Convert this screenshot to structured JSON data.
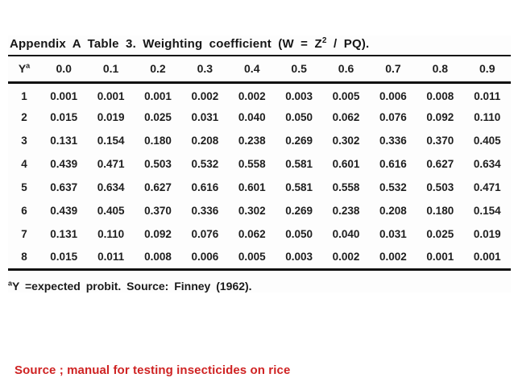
{
  "table": {
    "title": {
      "prefix": "Appendix A Table 3. Weighting coefficient (W = Z",
      "superscript": "2",
      "suffix": " / PQ)."
    },
    "header": {
      "row_label": "Y",
      "row_label_sup": "a",
      "columns": [
        "0.0",
        "0.1",
        "0.2",
        "0.3",
        "0.4",
        "0.5",
        "0.6",
        "0.7",
        "0.8",
        "0.9"
      ]
    },
    "rows": [
      {
        "y": "1",
        "values": [
          "0.001",
          "0.001",
          "0.001",
          "0.002",
          "0.002",
          "0.003",
          "0.005",
          "0.006",
          "0.008",
          "0.011"
        ]
      },
      {
        "y": "2",
        "values": [
          "0.015",
          "0.019",
          "0.025",
          "0.031",
          "0.040",
          "0.050",
          "0.062",
          "0.076",
          "0.092",
          "0.110"
        ]
      },
      {
        "y": "3",
        "values": [
          "0.131",
          "0.154",
          "0.180",
          "0.208",
          "0.238",
          "0.269",
          "0.302",
          "0.336",
          "0.370",
          "0.405"
        ]
      },
      {
        "y": "4",
        "values": [
          "0.439",
          "0.471",
          "0.503",
          "0.532",
          "0.558",
          "0.581",
          "0.601",
          "0.616",
          "0.627",
          "0.634"
        ]
      },
      {
        "y": "5",
        "values": [
          "0.637",
          "0.634",
          "0.627",
          "0.616",
          "0.601",
          "0.581",
          "0.558",
          "0.532",
          "0.503",
          "0.471"
        ]
      },
      {
        "y": "6",
        "values": [
          "0.439",
          "0.405",
          "0.370",
          "0.336",
          "0.302",
          "0.269",
          "0.238",
          "0.208",
          "0.180",
          "0.154"
        ]
      },
      {
        "y": "7",
        "values": [
          "0.131",
          "0.110",
          "0.092",
          "0.076",
          "0.062",
          "0.050",
          "0.040",
          "0.031",
          "0.025",
          "0.019"
        ]
      },
      {
        "y": "8",
        "values": [
          "0.015",
          "0.011",
          "0.008",
          "0.006",
          "0.005",
          "0.003",
          "0.002",
          "0.002",
          "0.001",
          "0.001"
        ]
      }
    ],
    "footnote": {
      "superscript": "a",
      "text": "Y =expected probit. Source: Finney (1962)."
    }
  },
  "caption": {
    "text": "Source ; manual for testing insecticides on rice",
    "color": "#cf2323"
  },
  "colors": {
    "page_background": "#ffffff",
    "table_ink": "#1b1b1b"
  }
}
